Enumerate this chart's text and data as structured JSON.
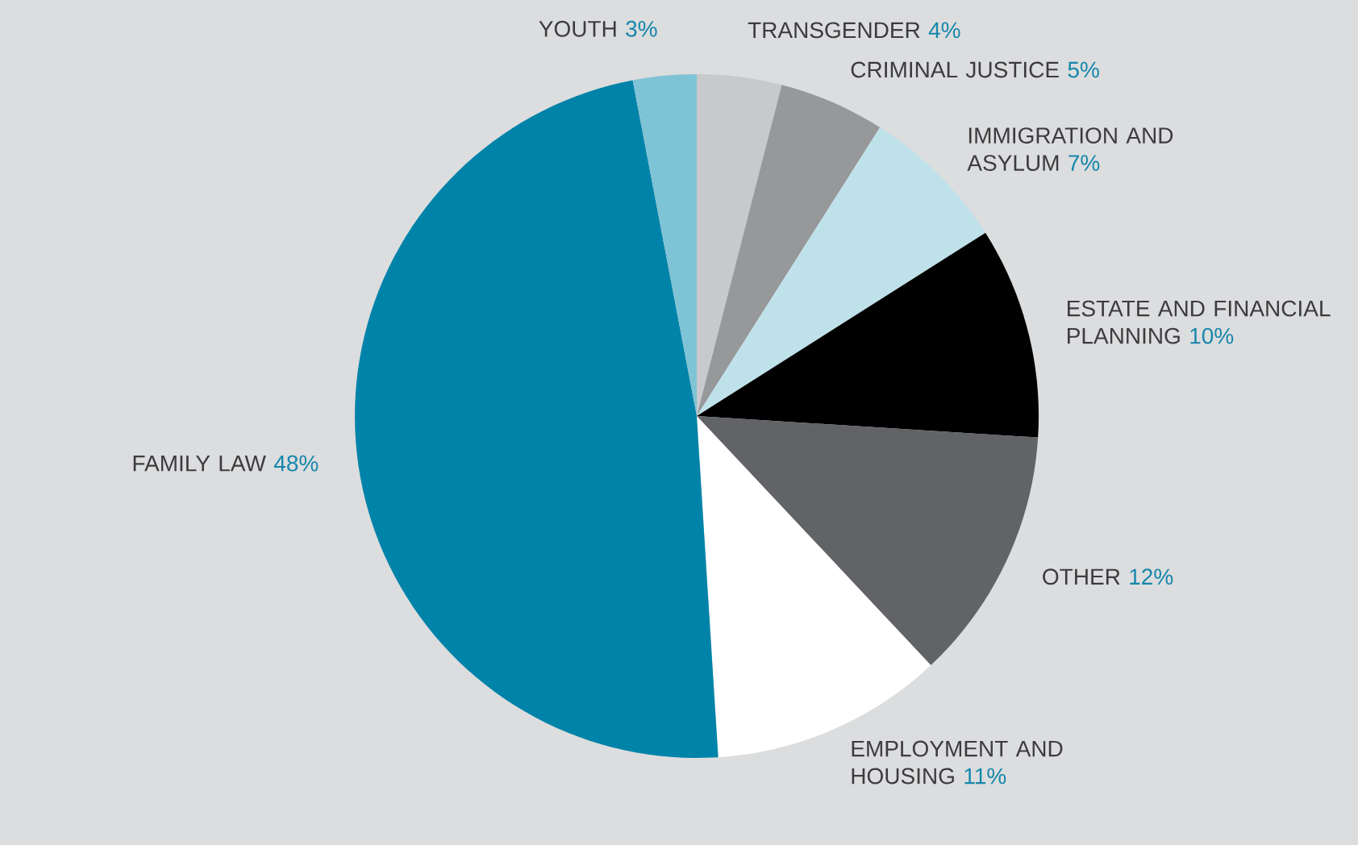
{
  "chart_data": {
    "type": "pie",
    "categories": [
      "TRANSGENDER",
      "CRIMINAL JUSTICE",
      "IMMIGRATION AND ASYLUM",
      "ESTATE AND FINANCIAL PLANNING",
      "OTHER",
      "EMPLOYMENT AND HOUSING",
      "FAMILY LAW",
      "YOUTH"
    ],
    "values": [
      4,
      5,
      7,
      10,
      12,
      11,
      48,
      3
    ],
    "value_labels": [
      "4%",
      "5%",
      "7%",
      "10%",
      "12%",
      "11%",
      "48%",
      "3%"
    ],
    "colors": [
      "#c8c9ca",
      "#97989a",
      "#bfe1ea",
      "#000000",
      "#626366",
      "#ffffff",
      "#0083a9",
      "#7fc3d6"
    ]
  }
}
